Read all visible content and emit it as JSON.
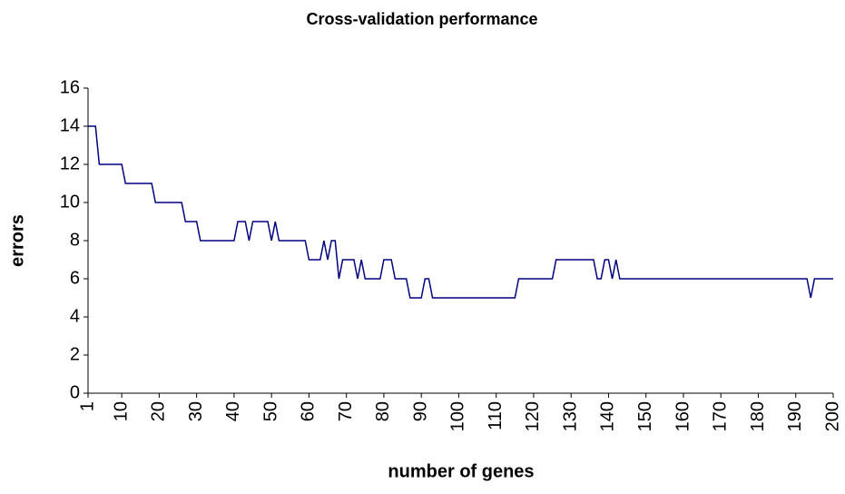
{
  "chart_data": {
    "type": "line",
    "title": "Cross-validation performance",
    "xlabel": "number of genes",
    "ylabel": "errors",
    "x": [
      1,
      2,
      3,
      4,
      5,
      6,
      7,
      8,
      9,
      10,
      11,
      12,
      13,
      14,
      15,
      16,
      17,
      18,
      19,
      20,
      21,
      22,
      23,
      24,
      25,
      26,
      27,
      28,
      29,
      30,
      31,
      32,
      33,
      34,
      35,
      36,
      37,
      38,
      39,
      40,
      41,
      42,
      43,
      44,
      45,
      46,
      47,
      48,
      49,
      50,
      51,
      52,
      53,
      54,
      55,
      56,
      57,
      58,
      59,
      60,
      61,
      62,
      63,
      64,
      65,
      66,
      67,
      68,
      69,
      70,
      71,
      72,
      73,
      74,
      75,
      76,
      77,
      78,
      79,
      80,
      81,
      82,
      83,
      84,
      85,
      86,
      87,
      88,
      89,
      90,
      91,
      92,
      93,
      94,
      95,
      96,
      97,
      98,
      99,
      100,
      101,
      102,
      103,
      104,
      105,
      106,
      107,
      108,
      109,
      110,
      111,
      112,
      113,
      114,
      115,
      116,
      117,
      118,
      119,
      120,
      121,
      122,
      123,
      124,
      125,
      126,
      127,
      128,
      129,
      130,
      131,
      132,
      133,
      134,
      135,
      136,
      137,
      138,
      139,
      140,
      141,
      142,
      143,
      144,
      145,
      146,
      147,
      148,
      149,
      150,
      151,
      152,
      153,
      154,
      155,
      156,
      157,
      158,
      159,
      160,
      161,
      162,
      163,
      164,
      165,
      166,
      167,
      168,
      169,
      170,
      171,
      172,
      173,
      174,
      175,
      176,
      177,
      178,
      179,
      180,
      181,
      182,
      183,
      184,
      185,
      186,
      187,
      188,
      189,
      190,
      191,
      192,
      193,
      194,
      195,
      196,
      197,
      198,
      199,
      200
    ],
    "series": [
      {
        "name": "errors",
        "color": "#000080",
        "values": [
          14,
          14,
          14,
          12,
          12,
          12,
          12,
          12,
          12,
          12,
          11,
          11,
          11,
          11,
          11,
          11,
          11,
          11,
          10,
          10,
          10,
          10,
          10,
          10,
          10,
          10,
          9,
          9,
          9,
          9,
          8,
          8,
          8,
          8,
          8,
          8,
          8,
          8,
          8,
          8,
          9,
          9,
          9,
          8,
          9,
          9,
          9,
          9,
          9,
          8,
          9,
          8,
          8,
          8,
          8,
          8,
          8,
          8,
          8,
          7,
          7,
          7,
          7,
          8,
          7,
          8,
          8,
          6,
          7,
          7,
          7,
          7,
          6,
          7,
          6,
          6,
          6,
          6,
          6,
          7,
          7,
          7,
          6,
          6,
          6,
          6,
          5,
          5,
          5,
          5,
          6,
          6,
          5,
          5,
          5,
          5,
          5,
          5,
          5,
          5,
          5,
          5,
          5,
          5,
          5,
          5,
          5,
          5,
          5,
          5,
          5,
          5,
          5,
          5,
          5,
          6,
          6,
          6,
          6,
          6,
          6,
          6,
          6,
          6,
          6,
          7,
          7,
          7,
          7,
          7,
          7,
          7,
          7,
          7,
          7,
          7,
          6,
          6,
          7,
          7,
          6,
          7,
          6,
          6,
          6,
          6,
          6,
          6,
          6,
          6,
          6,
          6,
          6,
          6,
          6,
          6,
          6,
          6,
          6,
          6,
          6,
          6,
          6,
          6,
          6,
          6,
          6,
          6,
          6,
          6,
          6,
          6,
          6,
          6,
          6,
          6,
          6,
          6,
          6,
          6,
          6,
          6,
          6,
          6,
          6,
          6,
          6,
          6,
          6,
          6,
          6,
          6,
          6,
          5,
          6,
          6,
          6,
          6,
          6,
          6
        ]
      }
    ],
    "xlim": [
      1,
      200
    ],
    "xticks": [
      1,
      10,
      20,
      30,
      40,
      50,
      60,
      70,
      80,
      90,
      100,
      110,
      120,
      130,
      140,
      150,
      160,
      170,
      180,
      190,
      200
    ],
    "ylim": [
      0,
      16
    ],
    "yticks": [
      0,
      2,
      4,
      6,
      8,
      10,
      12,
      14,
      16
    ],
    "grid": false
  }
}
